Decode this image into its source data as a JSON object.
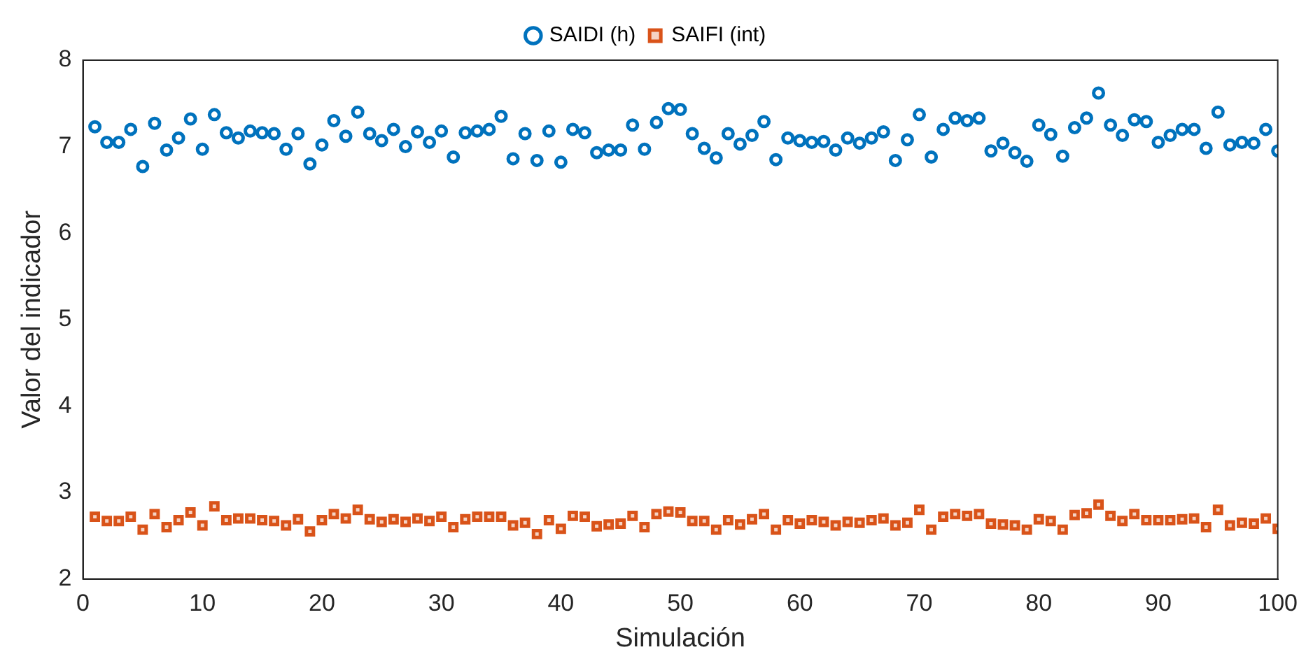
{
  "chart_data": {
    "type": "scatter",
    "xlabel": "Simulación",
    "ylabel": "Valor del indicador",
    "xlim": [
      0,
      100
    ],
    "xticks": [
      0,
      10,
      20,
      30,
      40,
      50,
      60,
      70,
      80,
      90,
      100
    ],
    "ylim": [
      2,
      8
    ],
    "yticks": [
      2,
      3,
      4,
      5,
      6,
      7,
      8
    ],
    "legend": "top",
    "grid": false,
    "x": [
      1,
      2,
      3,
      4,
      5,
      6,
      7,
      8,
      9,
      10,
      11,
      12,
      13,
      14,
      15,
      16,
      17,
      18,
      19,
      20,
      21,
      22,
      23,
      24,
      25,
      26,
      27,
      28,
      29,
      30,
      31,
      32,
      33,
      34,
      35,
      36,
      37,
      38,
      39,
      40,
      41,
      42,
      43,
      44,
      45,
      46,
      47,
      48,
      49,
      50,
      51,
      52,
      53,
      54,
      55,
      56,
      57,
      58,
      59,
      60,
      61,
      62,
      63,
      64,
      65,
      66,
      67,
      68,
      69,
      70,
      71,
      72,
      73,
      74,
      75,
      76,
      77,
      78,
      79,
      80,
      81,
      82,
      83,
      84,
      85,
      86,
      87,
      88,
      89,
      90,
      91,
      92,
      93,
      94,
      95,
      96,
      97,
      98,
      99,
      100
    ],
    "series": [
      {
        "name": "SAIDI (h)",
        "color": "#0072bd",
        "marker": "circle",
        "values": [
          7.23,
          7.05,
          7.05,
          7.2,
          6.77,
          7.27,
          6.96,
          7.1,
          7.32,
          6.97,
          7.37,
          7.16,
          7.1,
          7.18,
          7.16,
          7.15,
          6.97,
          7.15,
          6.8,
          7.02,
          7.3,
          7.12,
          7.4,
          7.15,
          7.07,
          7.2,
          7.0,
          7.17,
          7.05,
          7.18,
          6.88,
          7.16,
          7.18,
          7.2,
          7.35,
          6.86,
          7.15,
          6.84,
          7.18,
          6.82,
          7.2,
          7.16,
          6.93,
          6.96,
          6.96,
          7.25,
          6.97,
          7.28,
          7.44,
          7.43,
          7.15,
          6.98,
          6.87,
          7.15,
          7.03,
          7.13,
          7.29,
          6.85,
          7.1,
          7.07,
          7.05,
          7.06,
          6.96,
          7.1,
          7.04,
          7.1,
          7.17,
          6.84,
          7.08,
          7.37,
          6.88,
          7.2,
          7.33,
          7.3,
          7.33,
          6.95,
          7.04,
          6.93,
          6.83,
          7.25,
          7.14,
          6.89,
          7.22,
          7.33,
          7.62,
          7.25,
          7.13,
          7.31,
          7.29,
          7.05,
          7.13,
          7.2,
          7.2,
          6.98,
          7.4,
          7.02,
          7.05,
          7.04,
          7.2,
          6.95
        ]
      },
      {
        "name": "SAIFI (int)",
        "color": "#d95319",
        "marker": "square",
        "values": [
          2.72,
          2.67,
          2.67,
          2.72,
          2.57,
          2.75,
          2.6,
          2.68,
          2.77,
          2.62,
          2.84,
          2.68,
          2.7,
          2.7,
          2.68,
          2.67,
          2.62,
          2.69,
          2.55,
          2.68,
          2.75,
          2.7,
          2.8,
          2.69,
          2.66,
          2.69,
          2.66,
          2.7,
          2.67,
          2.72,
          2.6,
          2.69,
          2.72,
          2.72,
          2.72,
          2.62,
          2.65,
          2.52,
          2.68,
          2.58,
          2.73,
          2.72,
          2.61,
          2.63,
          2.64,
          2.73,
          2.6,
          2.75,
          2.78,
          2.77,
          2.67,
          2.67,
          2.57,
          2.68,
          2.63,
          2.69,
          2.75,
          2.57,
          2.68,
          2.64,
          2.68,
          2.66,
          2.62,
          2.66,
          2.65,
          2.68,
          2.7,
          2.62,
          2.65,
          2.8,
          2.57,
          2.72,
          2.75,
          2.73,
          2.75,
          2.64,
          2.63,
          2.62,
          2.57,
          2.69,
          2.67,
          2.57,
          2.74,
          2.76,
          2.86,
          2.73,
          2.67,
          2.75,
          2.68,
          2.68,
          2.68,
          2.69,
          2.7,
          2.6,
          2.8,
          2.62,
          2.65,
          2.64,
          2.7,
          2.58
        ]
      }
    ]
  }
}
